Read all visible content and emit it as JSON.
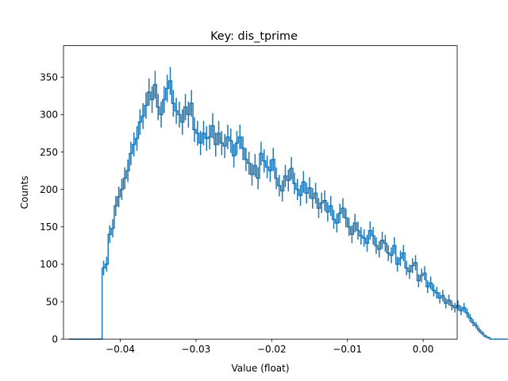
{
  "chart_data": {
    "type": "step-histogram",
    "title": "Key: dis_tprime",
    "xlabel": "Value (float)",
    "ylabel": "Counts",
    "xlim": [
      -0.0475,
      0.0045
    ],
    "ylim": [
      0,
      392
    ],
    "x_ticks": [
      -0.04,
      -0.03,
      -0.02,
      -0.01,
      0.0
    ],
    "x_tick_labels": [
      "−0.04",
      "−0.03",
      "−0.02",
      "−0.01",
      "0.00"
    ],
    "y_ticks": [
      0,
      50,
      100,
      150,
      200,
      250,
      300,
      350
    ],
    "y_tick_labels": [
      "0",
      "50",
      "100",
      "150",
      "200",
      "250",
      "300",
      "350"
    ],
    "grid": false,
    "series": [
      {
        "color": "#1f77b4",
        "bin_start": -0.0468,
        "bin_width": 0.0004,
        "counts": [
          0,
          0,
          0,
          0,
          0,
          0,
          0,
          0,
          0,
          0,
          0,
          95,
          100,
          140,
          148,
          178,
          190,
          200,
          215,
          225,
          248,
          260,
          268,
          290,
          298,
          312,
          330,
          320,
          340,
          310,
          300,
          320,
          335,
          345,
          315,
          305,
          300,
          290,
          310,
          300,
          315,
          280,
          275,
          262,
          275,
          268,
          270,
          285,
          260,
          275,
          262,
          258,
          270,
          265,
          245,
          262,
          270,
          255,
          240,
          235,
          220,
          232,
          215,
          248,
          238,
          230,
          225,
          240,
          215,
          205,
          198,
          218,
          212,
          228,
          208,
          200,
          192,
          210,
          195,
          202,
          188,
          195,
          175,
          182,
          185,
          170,
          178,
          160,
          155,
          168,
          175,
          162,
          150,
          140,
          155,
          145,
          138,
          135,
          128,
          145,
          138,
          125,
          120,
          132,
          128,
          115,
          112,
          125,
          100,
          108,
          115,
          95,
          90,
          98,
          102,
          78,
          85,
          88,
          70,
          75,
          65,
          62,
          55,
          58,
          48,
          52,
          45,
          42,
          45,
          38,
          42,
          35,
          28,
          22,
          18,
          12,
          8,
          4,
          2,
          0,
          0,
          0,
          0,
          0,
          0,
          0,
          0,
          0,
          0,
          0,
          0,
          0
        ],
        "error_bars": true
      }
    ]
  }
}
